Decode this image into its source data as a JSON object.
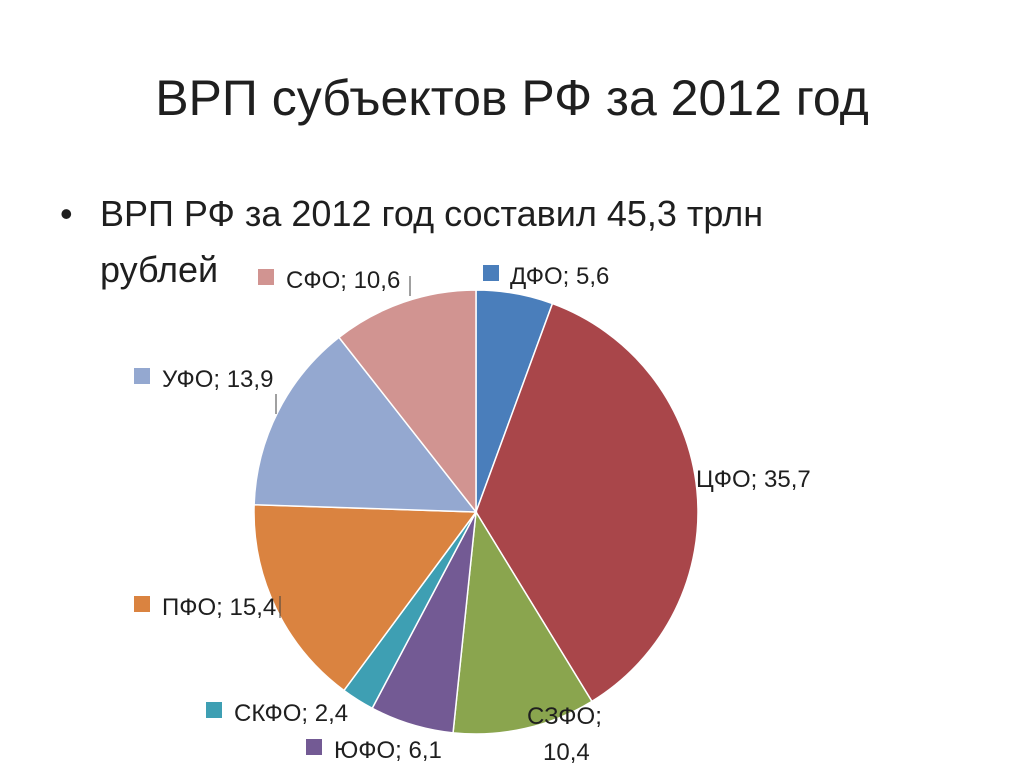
{
  "slide": {
    "title": "ВРП субъектов РФ за 2012 год",
    "bullet_marker": "•",
    "bullet_text": "ВРП РФ за 2012 год составил 45,3 трлн рублей"
  },
  "chart_data": {
    "type": "pie",
    "title": "",
    "start_angle_deg": 0,
    "direction": "clockwise",
    "label_format": "{name}; {value}",
    "legend": "none",
    "categories": [
      "ДФО",
      "ЦФО",
      "СЗФО",
      "ЮФО",
      "СКФО",
      "ПФО",
      "УФО",
      "СФО"
    ],
    "values": [
      5.6,
      35.7,
      10.4,
      6.1,
      2.4,
      15.4,
      13.9,
      10.6
    ],
    "value_labels": [
      "5,6",
      "35,7",
      "10,4",
      "6,1",
      "2,4",
      "15,4",
      "13,9",
      "10,6"
    ],
    "colors": [
      "#4A7EBB",
      "#A9464A",
      "#8AA54E",
      "#735A94",
      "#3E9FB3",
      "#DA8340",
      "#94A8D0",
      "#D19491"
    ]
  }
}
